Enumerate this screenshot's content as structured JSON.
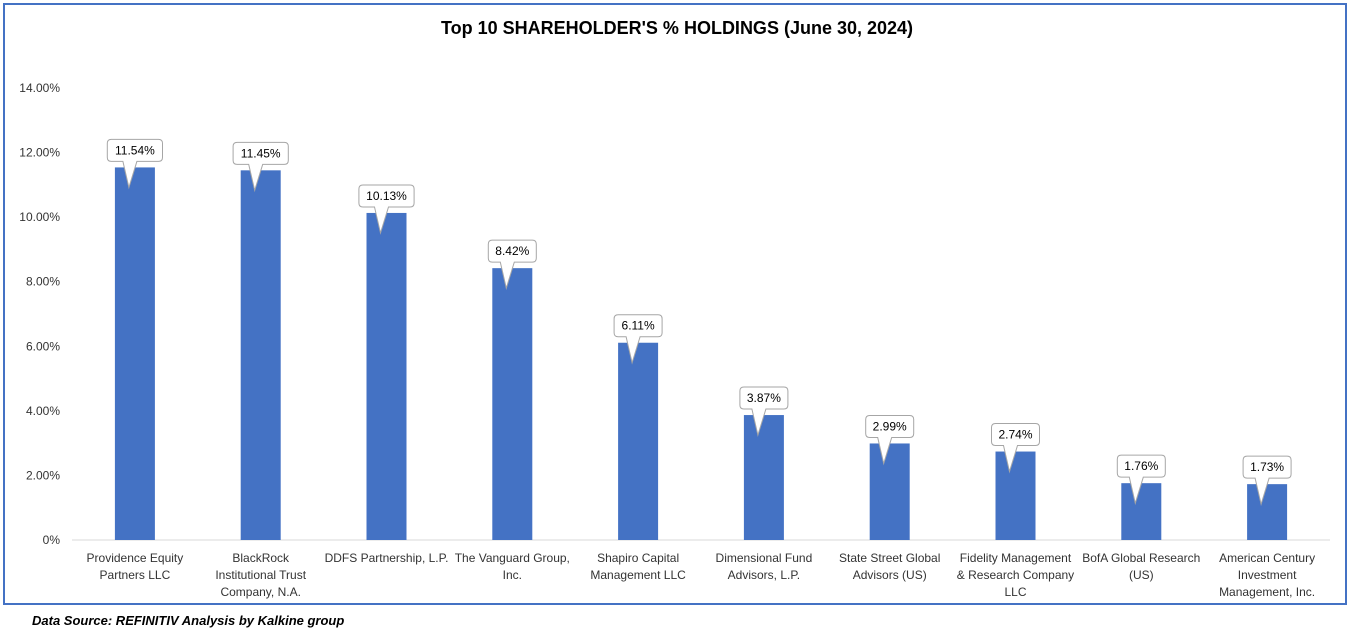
{
  "chart_data": {
    "type": "bar",
    "title": "Top 10 SHAREHOLDER'S % HOLDINGS (June 30, 2024)",
    "categories": [
      [
        "Providence Equity",
        "Partners LLC"
      ],
      [
        "BlackRock",
        "Institutional Trust",
        "Company, N.A."
      ],
      [
        "DDFS Partnership, L.P."
      ],
      [
        "The Vanguard Group,",
        "Inc."
      ],
      [
        "Shapiro Capital",
        "Management LLC"
      ],
      [
        "Dimensional Fund",
        "Advisors, L.P."
      ],
      [
        "State Street Global",
        "Advisors (US)"
      ],
      [
        "Fidelity Management",
        "& Research Company",
        "LLC"
      ],
      [
        "BofA Global Research",
        "(US)"
      ],
      [
        "American Century",
        "Investment",
        "Management, Inc."
      ]
    ],
    "values": [
      11.54,
      11.45,
      10.13,
      8.42,
      6.11,
      3.87,
      2.99,
      2.74,
      1.76,
      1.73
    ],
    "data_labels": [
      "11.54%",
      "11.45%",
      "10.13%",
      "8.42%",
      "6.11%",
      "3.87%",
      "2.99%",
      "2.74%",
      "1.76%",
      "1.73%"
    ],
    "y_ticks": [
      0,
      2,
      4,
      6,
      8,
      10,
      12,
      14
    ],
    "y_tick_labels": [
      "0%",
      "2.00%",
      "4.00%",
      "6.00%",
      "8.00%",
      "10.00%",
      "12.00%",
      "14.00%"
    ],
    "ylim": [
      0,
      14
    ],
    "xlabel": "",
    "ylabel": "",
    "grid": false,
    "legend": "none",
    "bar_color": "#4472C4",
    "frame_color": "#4472C4"
  },
  "footer": {
    "source": "Data Source: REFINITIV Analysis by Kalkine group"
  }
}
